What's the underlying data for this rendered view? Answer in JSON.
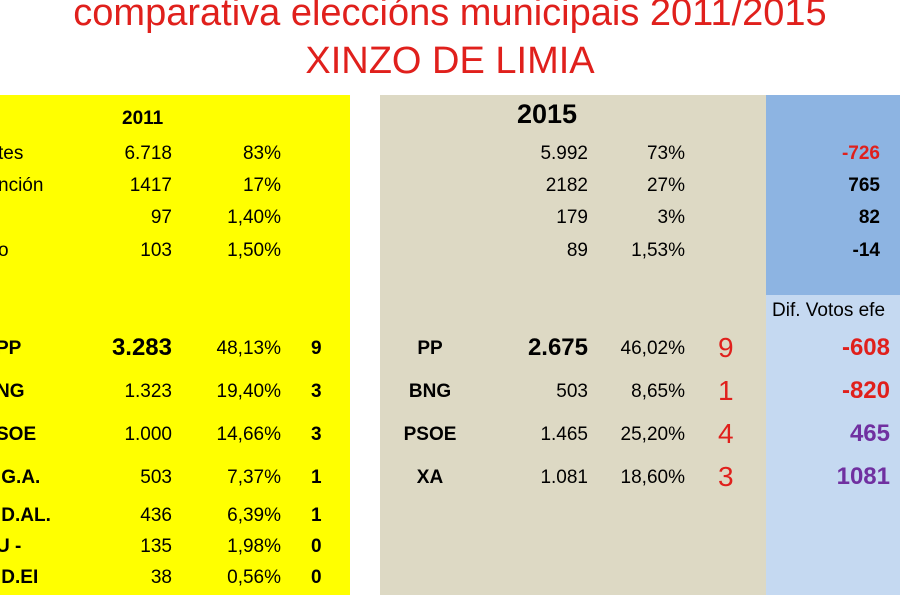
{
  "title": {
    "line1": "comparativa eleccións municipais 2011/2015",
    "line2": "XINZO DE LIMIA"
  },
  "colors": {
    "title": "#e0201c",
    "panel_2011": "#ffff00",
    "panel_2015": "#ddd9c4",
    "panel_diff_top": "#8db4e2",
    "panel_diff_bottom": "#c5d9f1",
    "diff_negative": "#e0201c",
    "diff_new": "#7030a0"
  },
  "headers": {
    "year_2011": "2011",
    "year_2015": "2015",
    "dif_votos": "Dif. Votos efe"
  },
  "summary_rows": [
    {
      "label": "tes",
      "v2011": "6.718",
      "p2011": "83%",
      "v2015": "5.992",
      "p2015": "73%",
      "diff": "-726"
    },
    {
      "label": "nción",
      "v2011": "1417",
      "p2011": "17%",
      "v2015": "2182",
      "p2015": "27%",
      "diff": "765"
    },
    {
      "label": "",
      "v2011": "97",
      "p2011": "1,40%",
      "v2015": "179",
      "p2015": "3%",
      "diff": "82"
    },
    {
      "label": "o",
      "v2011": "103",
      "p2011": "1,50%",
      "v2015": "89",
      "p2015": "1,53%",
      "diff": "-14"
    }
  ],
  "parties_2011": [
    {
      "name": "PP",
      "votes": "3.283",
      "pct": "48,13%",
      "seats": "9"
    },
    {
      "name": "NG",
      "votes": "1.323",
      "pct": "19,40%",
      "seats": "3"
    },
    {
      "name": "SOE",
      "votes": "1.000",
      "pct": "14,66%",
      "seats": "3"
    },
    {
      "name": ".G.A.",
      "votes": "503",
      "pct": "7,37%",
      "seats": "1"
    },
    {
      "name": ".D.AL.",
      "votes": "436",
      "pct": "6,39%",
      "seats": "1"
    },
    {
      "name": "U -",
      "votes": "135",
      "pct": "1,98%",
      "seats": "0"
    },
    {
      "name": ".D.EI",
      "votes": "38",
      "pct": "0,56%",
      "seats": "0"
    }
  ],
  "parties_2015": [
    {
      "name": "PP",
      "votes": "2.675",
      "pct": "46,02%",
      "seats": "9",
      "diff": "-608"
    },
    {
      "name": "BNG",
      "votes": "503",
      "pct": "8,65%",
      "seats": "1",
      "diff": "-820"
    },
    {
      "name": "PSOE",
      "votes": "1.465",
      "pct": "25,20%",
      "seats": "4",
      "diff": "465"
    },
    {
      "name": "XA",
      "votes": "1.081",
      "pct": "18,60%",
      "seats": "3",
      "diff": "1081"
    }
  ]
}
